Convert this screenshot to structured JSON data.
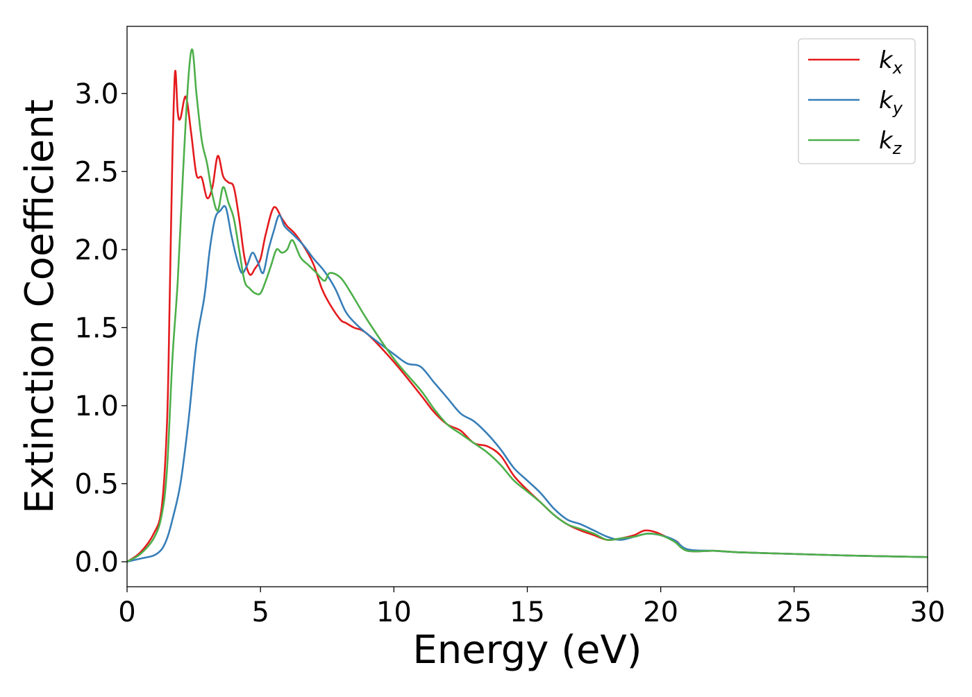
{
  "chart_data": {
    "type": "line",
    "title": "",
    "xlabel": "Energy (eV)",
    "ylabel": "Extinction Coefficient",
    "xlim": [
      0,
      30
    ],
    "ylim": [
      -0.16,
      3.43
    ],
    "xticks": [
      0,
      5,
      10,
      15,
      20,
      25,
      30
    ],
    "xtick_labels": [
      "0",
      "5",
      "10",
      "15",
      "20",
      "25",
      "30"
    ],
    "yticks": [
      0.0,
      0.5,
      1.0,
      1.5,
      2.0,
      2.5,
      3.0
    ],
    "ytick_labels": [
      "0.0",
      "0.5",
      "1.0",
      "1.5",
      "2.0",
      "2.5",
      "3.0"
    ],
    "grid": false,
    "legend_position": "top-right",
    "series": [
      {
        "name": "k_x",
        "label_main": "k",
        "label_sub": "x",
        "color": "#e41a1c",
        "x": [
          0,
          0.5,
          1.0,
          1.3,
          1.5,
          1.6,
          1.7,
          1.8,
          1.9,
          2.0,
          2.2,
          2.4,
          2.6,
          2.8,
          3.0,
          3.2,
          3.4,
          3.6,
          3.8,
          4.0,
          4.2,
          4.4,
          4.6,
          4.8,
          5.0,
          5.2,
          5.5,
          5.8,
          6.0,
          6.3,
          6.7,
          7.0,
          7.3,
          7.6,
          8.0,
          8.2,
          8.5,
          9.0,
          10.0,
          11.0,
          11.5,
          12.0,
          12.5,
          13.0,
          13.5,
          14.0,
          14.5,
          15.0,
          15.5,
          16.0,
          16.5,
          17.0,
          17.5,
          18.0,
          18.5,
          19.0,
          19.4,
          19.8,
          20.2,
          20.6,
          21.0,
          22.0,
          23.0,
          25.0,
          27.0,
          30.0
        ],
        "y": [
          0.0,
          0.06,
          0.18,
          0.35,
          0.9,
          1.7,
          2.6,
          3.14,
          2.88,
          2.84,
          2.98,
          2.75,
          2.48,
          2.46,
          2.33,
          2.4,
          2.6,
          2.47,
          2.43,
          2.4,
          2.2,
          1.95,
          1.84,
          1.88,
          1.94,
          2.1,
          2.27,
          2.2,
          2.15,
          2.1,
          2.0,
          1.9,
          1.75,
          1.65,
          1.55,
          1.53,
          1.5,
          1.46,
          1.28,
          1.07,
          0.96,
          0.88,
          0.84,
          0.76,
          0.74,
          0.68,
          0.55,
          0.46,
          0.38,
          0.3,
          0.24,
          0.2,
          0.17,
          0.14,
          0.15,
          0.17,
          0.2,
          0.19,
          0.16,
          0.13,
          0.07,
          0.07,
          0.06,
          0.05,
          0.04,
          0.03
        ]
      },
      {
        "name": "k_y",
        "label_main": "k",
        "label_sub": "y",
        "color": "#377eb8",
        "x": [
          0,
          0.5,
          1.0,
          1.3,
          1.5,
          1.7,
          2.0,
          2.3,
          2.6,
          2.9,
          3.1,
          3.3,
          3.5,
          3.7,
          3.9,
          4.1,
          4.3,
          4.5,
          4.7,
          4.9,
          5.1,
          5.3,
          5.5,
          5.7,
          5.9,
          6.2,
          6.6,
          7.0,
          7.4,
          7.8,
          8.2,
          8.6,
          9.0,
          10.0,
          10.5,
          11.0,
          11.5,
          12.0,
          12.5,
          13.0,
          13.5,
          14.0,
          14.5,
          15.0,
          15.5,
          16.0,
          16.5,
          17.0,
          17.5,
          18.0,
          18.5,
          19.0,
          19.5,
          20.0,
          20.5,
          21.0,
          22.0,
          23.0,
          25.0,
          27.0,
          30.0
        ],
        "y": [
          0.0,
          0.02,
          0.04,
          0.08,
          0.15,
          0.27,
          0.5,
          0.9,
          1.4,
          1.7,
          2.0,
          2.2,
          2.25,
          2.27,
          2.1,
          1.95,
          1.85,
          1.9,
          1.98,
          1.92,
          1.85,
          2.0,
          2.12,
          2.22,
          2.15,
          2.1,
          2.03,
          1.94,
          1.86,
          1.75,
          1.6,
          1.52,
          1.46,
          1.33,
          1.27,
          1.25,
          1.15,
          1.05,
          0.95,
          0.9,
          0.82,
          0.72,
          0.6,
          0.52,
          0.44,
          0.34,
          0.27,
          0.24,
          0.2,
          0.16,
          0.14,
          0.16,
          0.18,
          0.17,
          0.14,
          0.08,
          0.07,
          0.06,
          0.05,
          0.04,
          0.03
        ]
      },
      {
        "name": "k_z",
        "label_main": "k",
        "label_sub": "z",
        "color": "#4daf4a",
        "x": [
          0,
          0.5,
          1.0,
          1.3,
          1.5,
          1.7,
          1.9,
          2.1,
          2.3,
          2.45,
          2.6,
          2.8,
          3.0,
          3.2,
          3.4,
          3.6,
          3.8,
          4.0,
          4.2,
          4.4,
          4.6,
          4.8,
          5.0,
          5.2,
          5.4,
          5.6,
          5.8,
          6.0,
          6.2,
          6.5,
          6.8,
          7.1,
          7.4,
          7.6,
          8.0,
          8.4,
          9.0,
          10.0,
          11.0,
          11.5,
          12.0,
          12.5,
          13.0,
          13.5,
          14.0,
          14.5,
          15.0,
          15.5,
          16.0,
          16.5,
          17.0,
          17.5,
          18.0,
          18.5,
          19.0,
          19.5,
          20.0,
          20.5,
          21.0,
          22.0,
          23.0,
          25.0,
          27.0,
          30.0
        ],
        "y": [
          0.0,
          0.05,
          0.15,
          0.3,
          0.6,
          1.3,
          1.8,
          2.5,
          3.1,
          3.28,
          3.0,
          2.7,
          2.55,
          2.35,
          2.25,
          2.4,
          2.3,
          2.2,
          2.0,
          1.8,
          1.75,
          1.72,
          1.72,
          1.8,
          1.9,
          2.0,
          1.98,
          2.0,
          2.06,
          1.95,
          1.9,
          1.85,
          1.8,
          1.85,
          1.82,
          1.72,
          1.55,
          1.3,
          1.1,
          0.98,
          0.88,
          0.82,
          0.76,
          0.7,
          0.62,
          0.52,
          0.45,
          0.38,
          0.3,
          0.24,
          0.21,
          0.18,
          0.14,
          0.15,
          0.16,
          0.18,
          0.17,
          0.13,
          0.07,
          0.07,
          0.06,
          0.05,
          0.04,
          0.03
        ]
      }
    ]
  }
}
